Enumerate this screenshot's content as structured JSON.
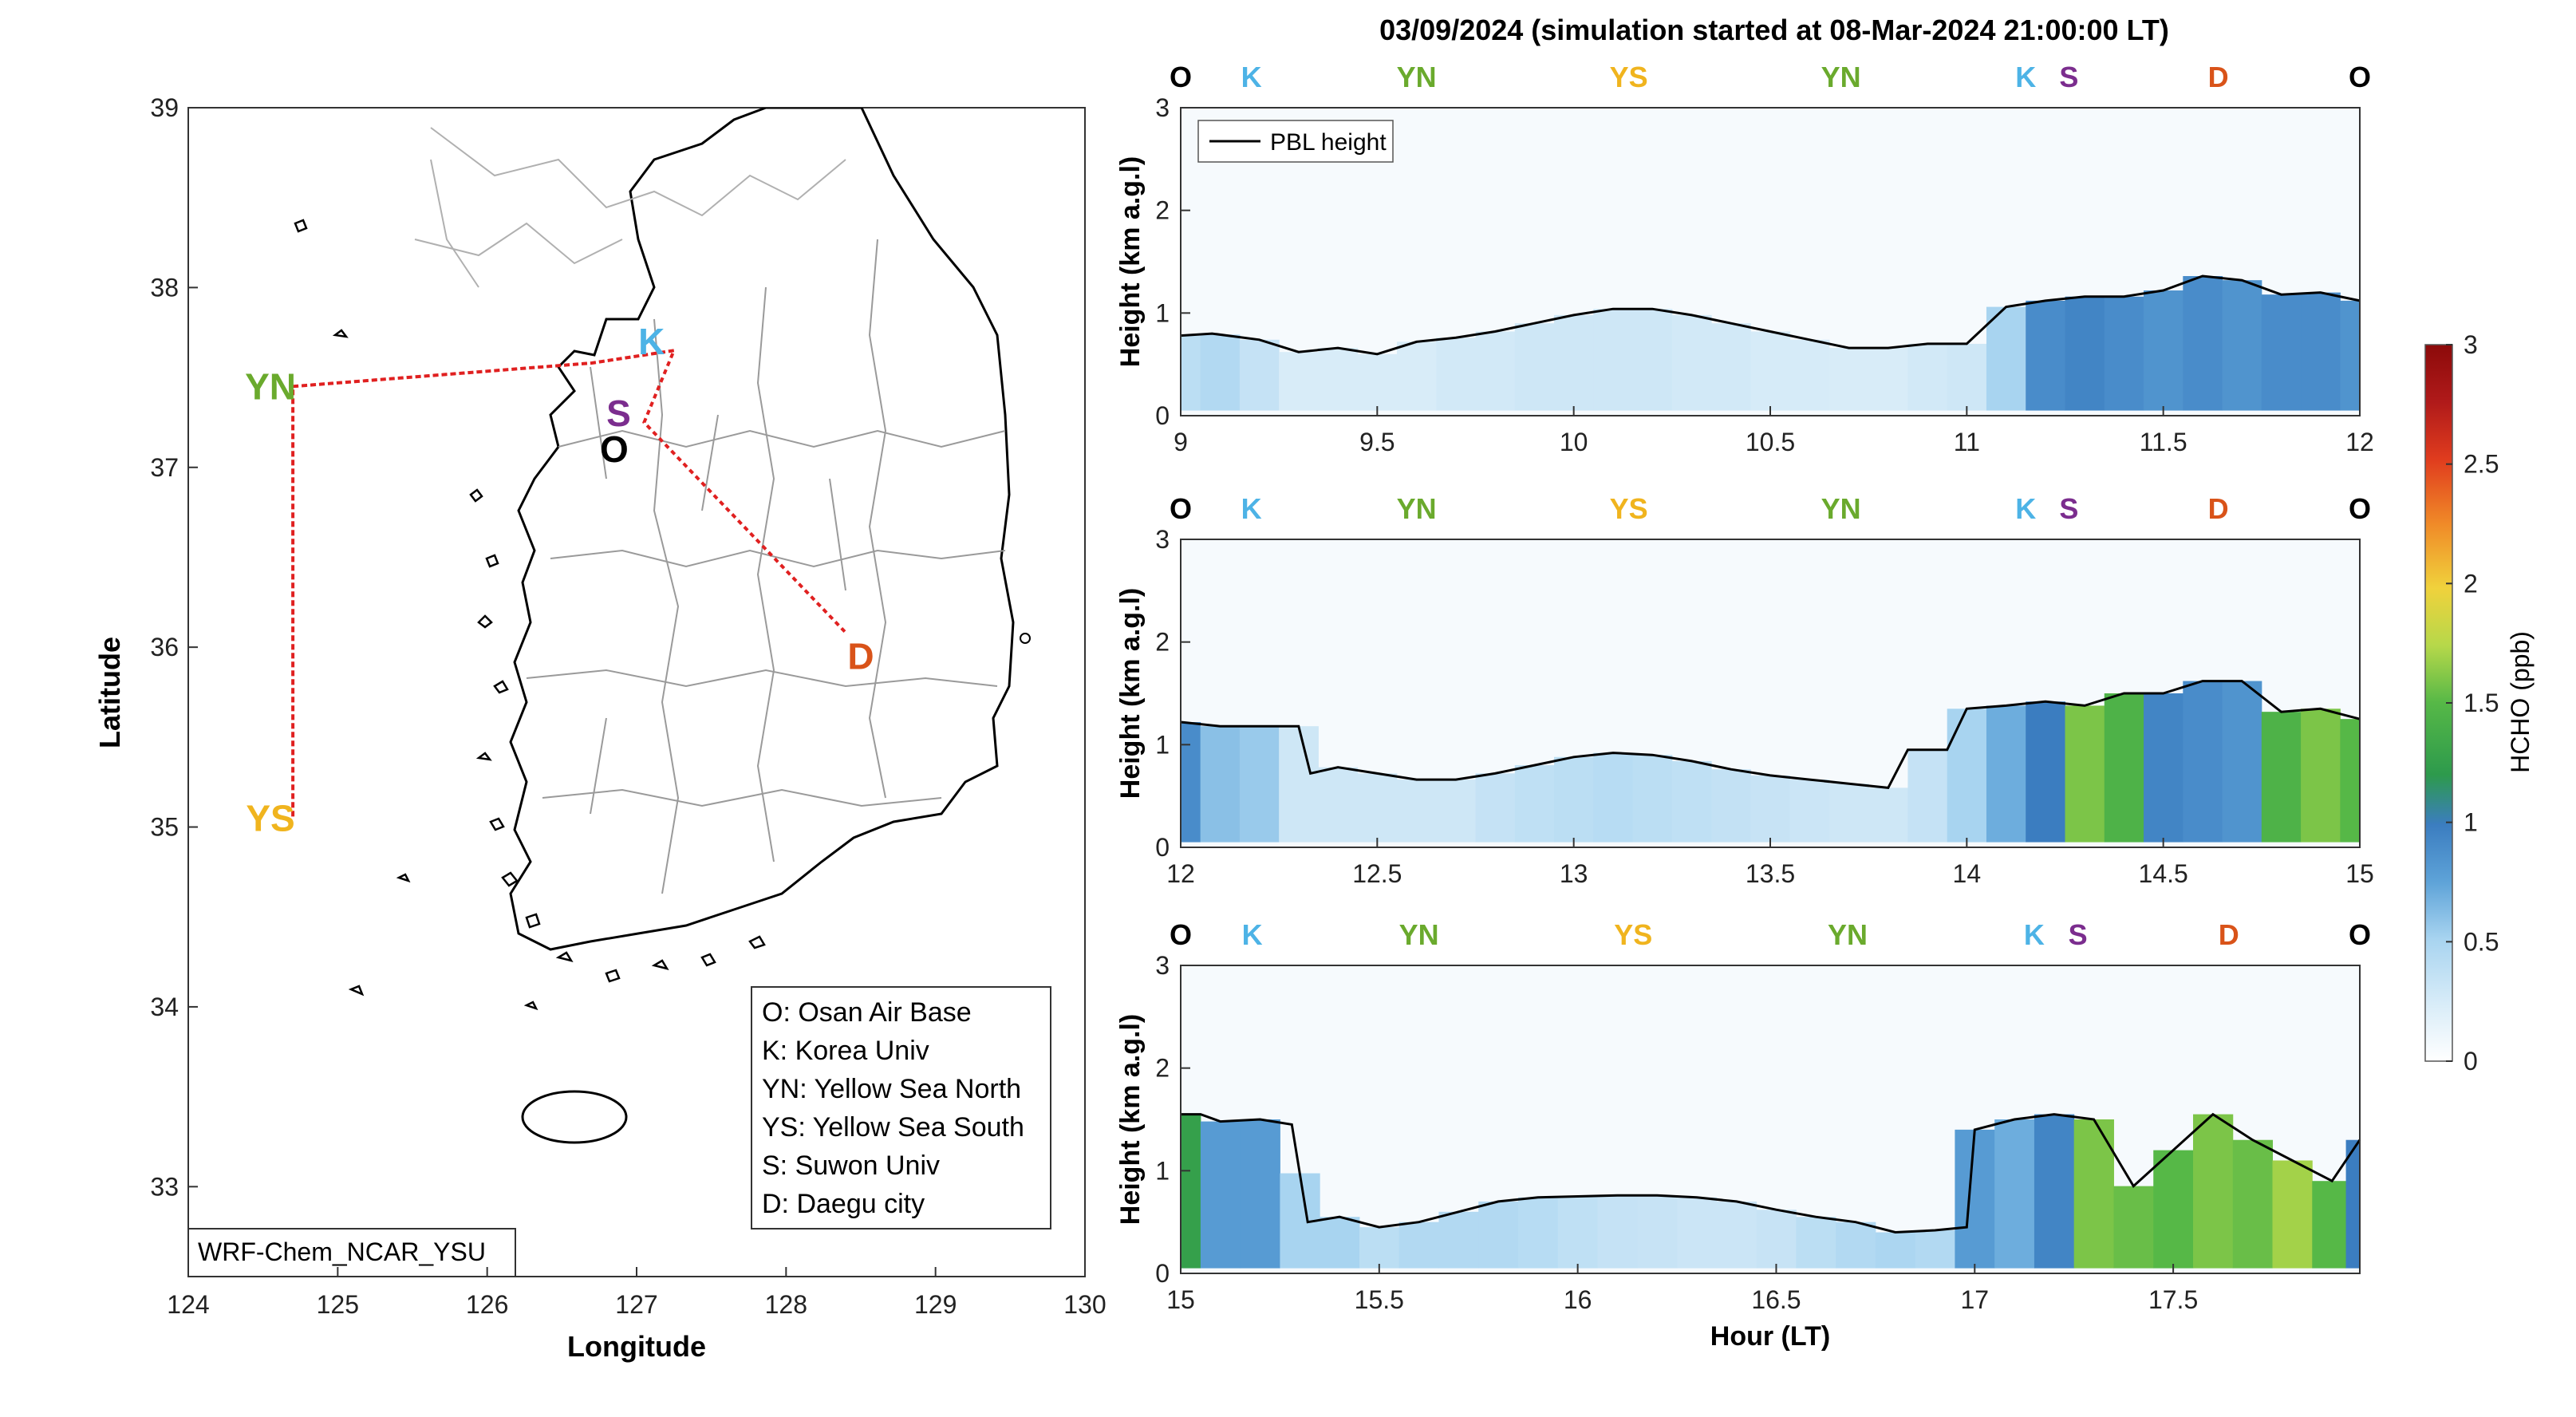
{
  "figure_title": "03/09/2024 (simulation started at 08-Mar-2024 21:00:00 LT)",
  "colors": {
    "site_O": "#000000",
    "site_K": "#4db3e6",
    "site_YN": "#6aaa2d",
    "site_YS": "#f0b41e",
    "site_S": "#7b2d8e",
    "site_D": "#d95319",
    "flight_track": "#e02020",
    "pbl_line": "#000000",
    "colormap": [
      "#ffffff",
      "#d8ecf8",
      "#a8d4f0",
      "#5ea3d8",
      "#3b7dc0",
      "#2d9a4c",
      "#56b847",
      "#b6d84a",
      "#f0d23c",
      "#f08a28",
      "#e03c1e",
      "#b01a1a",
      "#8c0a0a"
    ]
  },
  "map": {
    "xlabel": "Longitude",
    "ylabel": "Latitude",
    "xlim": [
      124,
      130
    ],
    "ylim": [
      32.5,
      39
    ],
    "xticks": [
      "124",
      "125",
      "126",
      "127",
      "128",
      "129",
      "130"
    ],
    "yticks": [
      "33",
      "34",
      "35",
      "36",
      "37",
      "38",
      "39"
    ],
    "model_label": "WRF-Chem_NCAR_YSU",
    "sites": [
      {
        "code": "O",
        "lon": 126.85,
        "lat": 37.1,
        "color": "#000000"
      },
      {
        "code": "K",
        "lon": 127.1,
        "lat": 37.7,
        "color": "#4db3e6"
      },
      {
        "code": "YN",
        "lon": 124.55,
        "lat": 37.45,
        "color": "#6aaa2d"
      },
      {
        "code": "YS",
        "lon": 124.55,
        "lat": 35.05,
        "color": "#f0b41e"
      },
      {
        "code": "S",
        "lon": 126.88,
        "lat": 37.3,
        "color": "#7b2d8e"
      },
      {
        "code": "D",
        "lon": 128.5,
        "lat": 35.95,
        "color": "#d95319"
      }
    ],
    "track": [
      {
        "lon": 127.25,
        "lat": 37.65
      },
      {
        "lon": 126.7,
        "lat": 37.58
      },
      {
        "lon": 124.7,
        "lat": 37.45
      },
      {
        "lon": 124.7,
        "lat": 35.05
      },
      {
        "lon": 124.7,
        "lat": 37.45
      },
      {
        "lon": 126.7,
        "lat": 37.58
      },
      {
        "lon": 127.25,
        "lat": 37.65
      },
      {
        "lon": 127.05,
        "lat": 37.25
      },
      {
        "lon": 128.4,
        "lat": 36.08
      }
    ],
    "legend": [
      "O: Osan Air Base",
      "K: Korea Univ",
      "YN: Yellow Sea North",
      "YS: Yellow Sea South",
      "S: Suwon Univ",
      "D: Daegu city"
    ]
  },
  "colorbar": {
    "label": "HCHO (ppb)",
    "ticks": [
      "0",
      "0.5",
      "1",
      "1.5",
      "2",
      "2.5",
      "3"
    ],
    "range": [
      0,
      3
    ]
  },
  "chart_data": [
    {
      "type": "heatmap",
      "title": "03/09/2024 (simulation started at 08-Mar-2024 21:00:00 LT)",
      "xlabel": "",
      "ylabel": "Height (km a.g.l)",
      "xlim": [
        9,
        12
      ],
      "ylim": [
        0,
        3
      ],
      "xticks": [
        "9",
        "9.5",
        "10",
        "10.5",
        "11",
        "11.5",
        "12"
      ],
      "yticks": [
        "0",
        "1",
        "2",
        "3"
      ],
      "legend_entry": "PBL height",
      "site_markers": [
        {
          "code": "O",
          "x": 9.0,
          "color": "#000000"
        },
        {
          "code": "K",
          "x": 9.18,
          "color": "#4db3e6"
        },
        {
          "code": "YN",
          "x": 9.6,
          "color": "#6aaa2d"
        },
        {
          "code": "YS",
          "x": 10.14,
          "color": "#f0b41e"
        },
        {
          "code": "YN",
          "x": 10.68,
          "color": "#6aaa2d"
        },
        {
          "code": "K",
          "x": 11.15,
          "color": "#4db3e6"
        },
        {
          "code": "S",
          "x": 11.26,
          "color": "#7b2d8e"
        },
        {
          "code": "D",
          "x": 11.64,
          "color": "#d95319"
        },
        {
          "code": "O",
          "x": 12.0,
          "color": "#000000"
        }
      ],
      "pbl_x": [
        9.0,
        9.08,
        9.2,
        9.3,
        9.4,
        9.5,
        9.6,
        9.7,
        9.8,
        9.9,
        10.0,
        10.1,
        10.2,
        10.3,
        10.4,
        10.5,
        10.6,
        10.7,
        10.8,
        10.9,
        11.0,
        11.1,
        11.2,
        11.3,
        11.4,
        11.5,
        11.6,
        11.7,
        11.8,
        11.9,
        12.0
      ],
      "pbl_y": [
        0.78,
        0.8,
        0.74,
        0.62,
        0.66,
        0.6,
        0.72,
        0.76,
        0.82,
        0.9,
        0.98,
        1.04,
        1.04,
        0.98,
        0.9,
        0.82,
        0.74,
        0.66,
        0.66,
        0.7,
        0.7,
        1.06,
        1.12,
        1.16,
        1.16,
        1.22,
        1.36,
        1.32,
        1.18,
        1.2,
        1.12
      ],
      "hcho_x": [
        9.0,
        9.1,
        9.2,
        9.3,
        9.4,
        9.5,
        9.6,
        9.7,
        9.8,
        9.9,
        10.0,
        10.1,
        10.2,
        10.3,
        10.4,
        10.5,
        10.6,
        10.7,
        10.8,
        10.9,
        11.0,
        11.1,
        11.2,
        11.3,
        11.4,
        11.5,
        11.6,
        11.7,
        11.8,
        11.9,
        12.0
      ],
      "hcho_bl": [
        0.4,
        0.45,
        0.35,
        0.25,
        0.25,
        0.25,
        0.25,
        0.28,
        0.28,
        0.3,
        0.3,
        0.3,
        0.3,
        0.28,
        0.28,
        0.26,
        0.26,
        0.25,
        0.25,
        0.28,
        0.3,
        0.5,
        0.9,
        0.95,
        0.9,
        0.85,
        0.9,
        0.85,
        0.9,
        0.9,
        0.85
      ]
    },
    {
      "type": "heatmap",
      "title": "",
      "xlabel": "",
      "ylabel": "Height (km a.g.l)",
      "xlim": [
        12,
        15
      ],
      "ylim": [
        0,
        3
      ],
      "xticks": [
        "12",
        "12.5",
        "13",
        "13.5",
        "14",
        "14.5",
        "15"
      ],
      "yticks": [
        "0",
        "1",
        "2",
        "3"
      ],
      "site_markers": [
        {
          "code": "O",
          "x": 12.0,
          "color": "#000000"
        },
        {
          "code": "K",
          "x": 12.18,
          "color": "#4db3e6"
        },
        {
          "code": "YN",
          "x": 12.6,
          "color": "#6aaa2d"
        },
        {
          "code": "YS",
          "x": 13.14,
          "color": "#f0b41e"
        },
        {
          "code": "YN",
          "x": 13.68,
          "color": "#6aaa2d"
        },
        {
          "code": "K",
          "x": 14.15,
          "color": "#4db3e6"
        },
        {
          "code": "S",
          "x": 14.26,
          "color": "#7b2d8e"
        },
        {
          "code": "D",
          "x": 14.64,
          "color": "#d95319"
        },
        {
          "code": "O",
          "x": 15.0,
          "color": "#000000"
        }
      ],
      "pbl_x": [
        12.0,
        12.1,
        12.2,
        12.3,
        12.33,
        12.4,
        12.5,
        12.6,
        12.7,
        12.8,
        12.9,
        13.0,
        13.1,
        13.2,
        13.3,
        13.4,
        13.5,
        13.6,
        13.7,
        13.8,
        13.85,
        13.95,
        14.0,
        14.1,
        14.2,
        14.3,
        14.4,
        14.5,
        14.6,
        14.7,
        14.8,
        14.9,
        15.0
      ],
      "pbl_y": [
        1.22,
        1.18,
        1.18,
        1.18,
        0.72,
        0.78,
        0.72,
        0.66,
        0.66,
        0.72,
        0.8,
        0.88,
        0.92,
        0.9,
        0.84,
        0.76,
        0.7,
        0.66,
        0.62,
        0.58,
        0.95,
        0.95,
        1.35,
        1.38,
        1.42,
        1.38,
        1.5,
        1.5,
        1.62,
        1.62,
        1.32,
        1.35,
        1.25
      ],
      "hcho_x": [
        12.0,
        12.1,
        12.2,
        12.3,
        12.4,
        12.5,
        12.6,
        12.7,
        12.8,
        12.9,
        13.0,
        13.1,
        13.2,
        13.3,
        13.4,
        13.5,
        13.6,
        13.7,
        13.8,
        13.9,
        14.0,
        14.1,
        14.2,
        14.3,
        14.4,
        14.5,
        14.6,
        14.7,
        14.8,
        14.9,
        15.0
      ],
      "hcho_bl": [
        0.9,
        0.6,
        0.55,
        0.3,
        0.3,
        0.3,
        0.3,
        0.3,
        0.35,
        0.38,
        0.4,
        0.42,
        0.4,
        0.38,
        0.36,
        0.34,
        0.32,
        0.3,
        0.3,
        0.35,
        0.5,
        0.7,
        1.0,
        1.6,
        1.45,
        0.95,
        0.9,
        0.85,
        1.45,
        1.6,
        1.5
      ]
    },
    {
      "type": "heatmap",
      "title": "",
      "xlabel": "Hour (LT)",
      "ylabel": "Height (km a.g.l)",
      "xlim": [
        15,
        17.97
      ],
      "ylim": [
        0,
        3
      ],
      "xticks": [
        "15",
        "15.5",
        "16",
        "16.5",
        "17",
        "17.5"
      ],
      "yticks": [
        "0",
        "1",
        "2",
        "3"
      ],
      "site_markers": [
        {
          "code": "O",
          "x": 15.0,
          "color": "#000000"
        },
        {
          "code": "K",
          "x": 15.18,
          "color": "#4db3e6"
        },
        {
          "code": "YN",
          "x": 15.6,
          "color": "#6aaa2d"
        },
        {
          "code": "YS",
          "x": 16.14,
          "color": "#f0b41e"
        },
        {
          "code": "YN",
          "x": 16.68,
          "color": "#6aaa2d"
        },
        {
          "code": "K",
          "x": 17.15,
          "color": "#4db3e6"
        },
        {
          "code": "S",
          "x": 17.26,
          "color": "#7b2d8e"
        },
        {
          "code": "D",
          "x": 17.64,
          "color": "#d95319"
        },
        {
          "code": "O",
          "x": 17.97,
          "color": "#000000"
        }
      ],
      "pbl_x": [
        15.0,
        15.05,
        15.1,
        15.2,
        15.28,
        15.32,
        15.4,
        15.5,
        15.6,
        15.7,
        15.8,
        15.9,
        16.0,
        16.1,
        16.2,
        16.3,
        16.4,
        16.5,
        16.6,
        16.7,
        16.8,
        16.9,
        16.98,
        17.0,
        17.1,
        17.2,
        17.3,
        17.4,
        17.5,
        17.6,
        17.7,
        17.8,
        17.9,
        17.97
      ],
      "pbl_y": [
        1.55,
        1.55,
        1.48,
        1.5,
        1.45,
        0.5,
        0.55,
        0.45,
        0.5,
        0.6,
        0.7,
        0.74,
        0.75,
        0.76,
        0.76,
        0.74,
        0.7,
        0.62,
        0.55,
        0.5,
        0.4,
        0.42,
        0.45,
        1.4,
        1.5,
        1.55,
        1.5,
        0.85,
        1.2,
        1.55,
        1.3,
        1.1,
        0.9,
        1.3
      ],
      "hcho_x": [
        15.0,
        15.1,
        15.2,
        15.3,
        15.4,
        15.5,
        15.6,
        15.7,
        15.8,
        15.9,
        16.0,
        16.1,
        16.2,
        16.3,
        16.4,
        16.5,
        16.6,
        16.7,
        16.8,
        16.9,
        17.0,
        17.1,
        17.2,
        17.3,
        17.4,
        17.5,
        17.6,
        17.7,
        17.8,
        17.9,
        17.97
      ],
      "hcho_bl": [
        1.3,
        0.8,
        0.8,
        0.5,
        0.5,
        0.4,
        0.45,
        0.45,
        0.45,
        0.42,
        0.38,
        0.35,
        0.34,
        0.32,
        0.32,
        0.34,
        0.4,
        0.45,
        0.48,
        0.45,
        0.8,
        0.7,
        0.95,
        1.6,
        1.55,
        1.5,
        1.6,
        1.55,
        1.7,
        1.5,
        1.0
      ]
    }
  ]
}
